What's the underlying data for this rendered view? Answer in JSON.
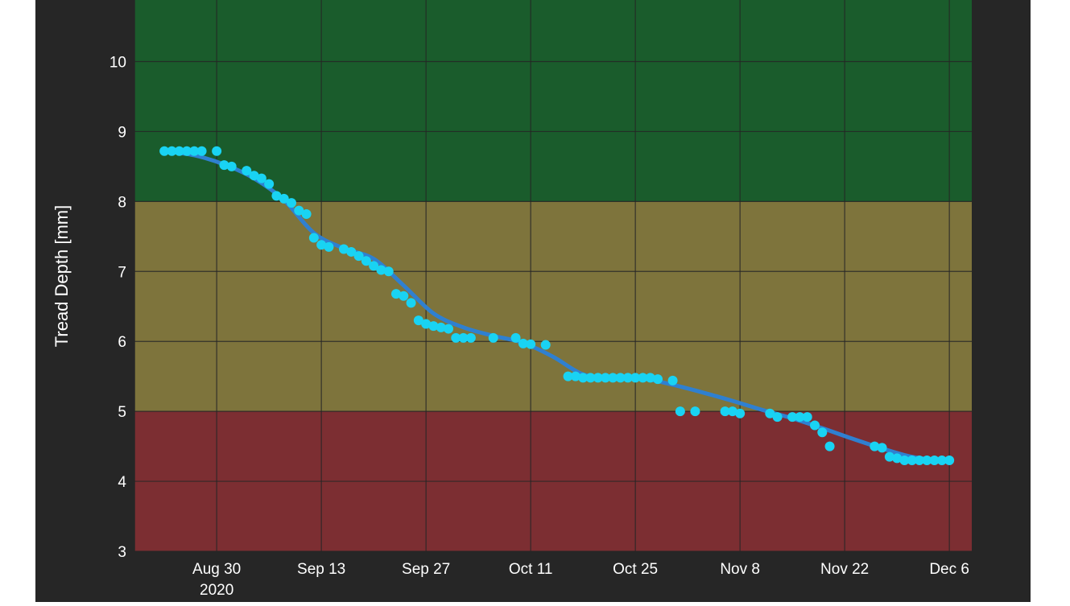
{
  "chart_data": {
    "type": "scatter",
    "title": "",
    "xlabel": "",
    "ylabel": "Tread Depth [mm]",
    "ylim": [
      3,
      10.88
    ],
    "xlim": [
      "2020-08-19",
      "2020-12-09"
    ],
    "y_ticks": [
      "3",
      "4",
      "5",
      "6",
      "7",
      "8",
      "9",
      "10"
    ],
    "x_ticks": [
      {
        "date": "2020-08-30",
        "label": "Aug 30",
        "sublabel": "2020"
      },
      {
        "date": "2020-09-13",
        "label": "Sep 13",
        "sublabel": ""
      },
      {
        "date": "2020-09-27",
        "label": "Sep 27",
        "sublabel": ""
      },
      {
        "date": "2020-10-11",
        "label": "Oct 11",
        "sublabel": ""
      },
      {
        "date": "2020-10-25",
        "label": "Oct 25",
        "sublabel": ""
      },
      {
        "date": "2020-11-08",
        "label": "Nov 8",
        "sublabel": ""
      },
      {
        "date": "2020-11-22",
        "label": "Nov 22",
        "sublabel": ""
      },
      {
        "date": "2020-12-06",
        "label": "Dec 6",
        "sublabel": ""
      }
    ],
    "grid": true,
    "bands": [
      {
        "from": 8,
        "to": 10.88,
        "color": "#1a5c2c"
      },
      {
        "from": 5,
        "to": 8,
        "color": "#7e743c"
      },
      {
        "from": 3,
        "to": 5,
        "color": "#7c2e32"
      }
    ],
    "series": [
      {
        "kind": "points",
        "color": "#19d3f3",
        "x": [
          "2020-08-23",
          "2020-08-24",
          "2020-08-25",
          "2020-08-26",
          "2020-08-27",
          "2020-08-28",
          "2020-08-30",
          "2020-08-31",
          "2020-09-01",
          "2020-09-03",
          "2020-09-04",
          "2020-09-05",
          "2020-09-06",
          "2020-09-07",
          "2020-09-08",
          "2020-09-09",
          "2020-09-10",
          "2020-09-11",
          "2020-09-12",
          "2020-09-13",
          "2020-09-14",
          "2020-09-16",
          "2020-09-17",
          "2020-09-18",
          "2020-09-19",
          "2020-09-20",
          "2020-09-21",
          "2020-09-22",
          "2020-09-23",
          "2020-09-24",
          "2020-09-25",
          "2020-09-26",
          "2020-09-27",
          "2020-09-28",
          "2020-09-29",
          "2020-09-30",
          "2020-10-01",
          "2020-10-02",
          "2020-10-03",
          "2020-10-06",
          "2020-10-09",
          "2020-10-10",
          "2020-10-11",
          "2020-10-13",
          "2020-10-16",
          "2020-10-17",
          "2020-10-18",
          "2020-10-19",
          "2020-10-20",
          "2020-10-21",
          "2020-10-22",
          "2020-10-23",
          "2020-10-24",
          "2020-10-25",
          "2020-10-26",
          "2020-10-27",
          "2020-10-28",
          "2020-10-30",
          "2020-10-31",
          "2020-11-02",
          "2020-11-06",
          "2020-11-07",
          "2020-11-08",
          "2020-11-12",
          "2020-11-13",
          "2020-11-15",
          "2020-11-16",
          "2020-11-17",
          "2020-11-18",
          "2020-11-19",
          "2020-11-20",
          "2020-11-26",
          "2020-11-27",
          "2020-11-28",
          "2020-11-29",
          "2020-11-30",
          "2020-12-01",
          "2020-12-02",
          "2020-12-03",
          "2020-12-04",
          "2020-12-05",
          "2020-12-06"
        ],
        "y": [
          8.72,
          8.72,
          8.72,
          8.72,
          8.72,
          8.72,
          8.72,
          8.52,
          8.5,
          8.44,
          8.37,
          8.33,
          8.25,
          8.08,
          8.04,
          7.98,
          7.87,
          7.82,
          7.48,
          7.38,
          7.35,
          7.32,
          7.28,
          7.22,
          7.15,
          7.08,
          7.02,
          7.0,
          6.68,
          6.65,
          6.55,
          6.3,
          6.25,
          6.22,
          6.2,
          6.18,
          6.05,
          6.05,
          6.05,
          6.05,
          6.05,
          5.97,
          5.96,
          5.95,
          5.5,
          5.5,
          5.48,
          5.48,
          5.48,
          5.48,
          5.48,
          5.48,
          5.48,
          5.48,
          5.48,
          5.48,
          5.46,
          5.44,
          5.0,
          5.0,
          5.0,
          5.0,
          4.97,
          4.97,
          4.92,
          4.92,
          4.92,
          4.92,
          4.8,
          4.7,
          4.5,
          4.5,
          4.48,
          4.35,
          4.33,
          4.3,
          4.3,
          4.3,
          4.3,
          4.3,
          4.3,
          4.3
        ]
      },
      {
        "kind": "trend-line",
        "color": "#2f80d0",
        "x": [
          "2020-08-23",
          "2020-08-27",
          "2020-08-31",
          "2020-09-04",
          "2020-09-08",
          "2020-09-12",
          "2020-09-16",
          "2020-09-20",
          "2020-09-24",
          "2020-09-28",
          "2020-10-02",
          "2020-10-06",
          "2020-10-10",
          "2020-10-14",
          "2020-10-18",
          "2020-10-22",
          "2020-10-26",
          "2020-10-30",
          "2020-11-03",
          "2020-11-07",
          "2020-11-11",
          "2020-11-15",
          "2020-11-19",
          "2020-11-23",
          "2020-11-27",
          "2020-12-01",
          "2020-12-06"
        ],
        "y": [
          8.72,
          8.66,
          8.53,
          8.33,
          8.02,
          7.55,
          7.33,
          7.18,
          6.8,
          6.4,
          6.2,
          6.08,
          5.98,
          5.78,
          5.53,
          5.48,
          5.47,
          5.38,
          5.27,
          5.15,
          5.02,
          4.9,
          4.76,
          4.61,
          4.47,
          4.35,
          4.28
        ]
      }
    ]
  }
}
